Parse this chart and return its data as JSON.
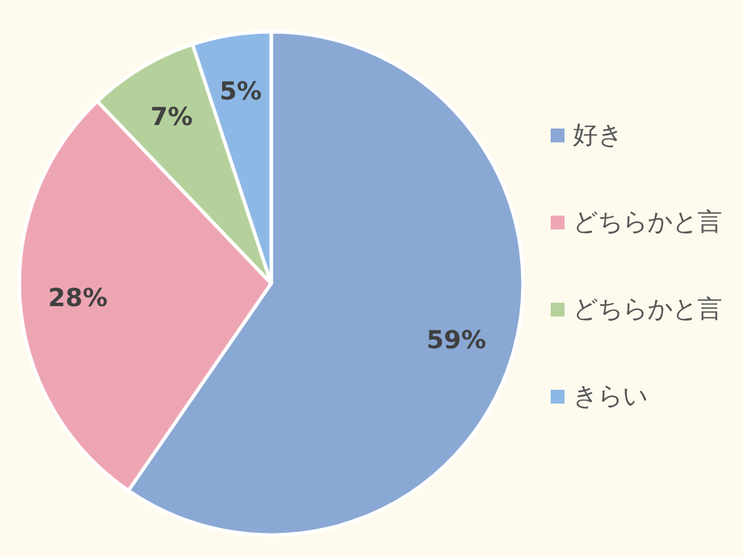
{
  "chart_data": {
    "type": "pie",
    "categories": [
      "好き",
      "どちらかと言",
      "どちらかと言",
      "きらい"
    ],
    "values": [
      59,
      28,
      7,
      5
    ],
    "colors": [
      "#8aa8d4",
      "#eea5b3",
      "#b5d19b",
      "#8db8e6"
    ],
    "value_labels": [
      "59%",
      "28%",
      "7%",
      "5%"
    ],
    "legend": "right"
  }
}
